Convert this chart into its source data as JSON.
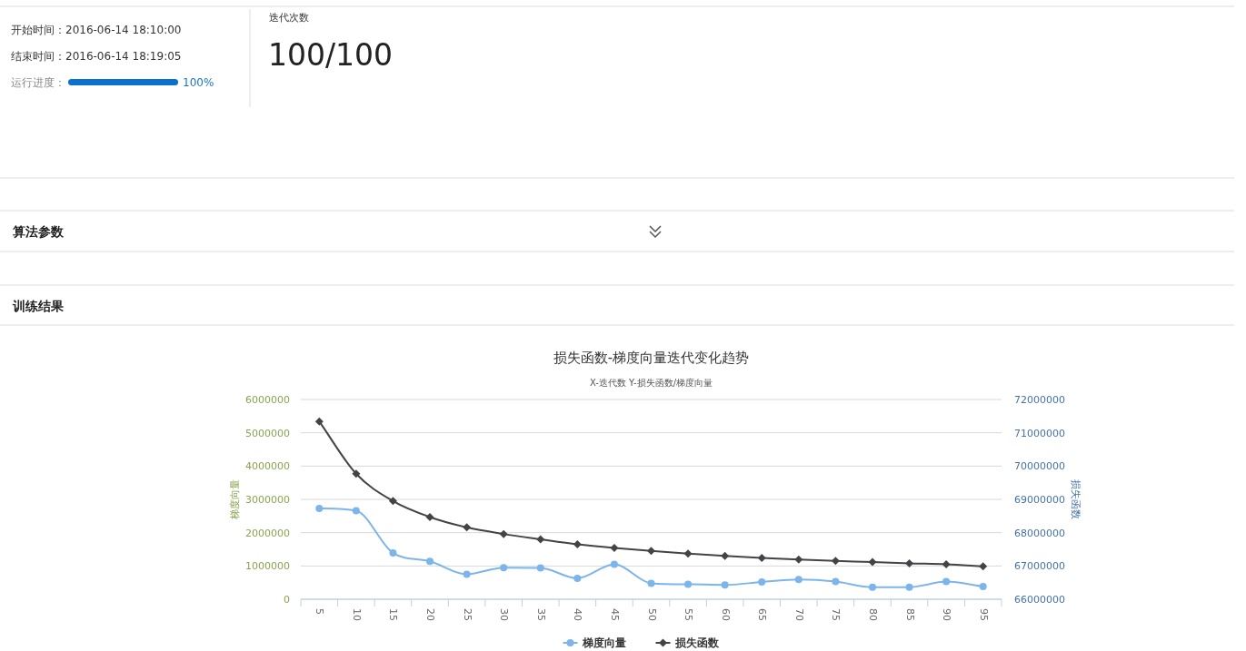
{
  "chart_data": [
    {
      "type": "other",
      "annotations": [
        "开始时间：2016-06-14 18:10:00",
        "结束时间：2016-06-14 18:19:05",
        "运行进度：",
        "100%",
        "迭代次数",
        "100/100",
        "算法参数",
        "训练结果"
      ]
    },
    {
      "type": "line",
      "title": "损失函数-梯度向量迭代变化趋势",
      "subtitle": "X-迭代数 Y-损失函数/梯度向量",
      "ylabel": "梯度向量",
      "y2label": "损失函数",
      "categories": [
        "5",
        "10",
        "15",
        "20",
        "25",
        "30",
        "35",
        "40",
        "45",
        "50",
        "55",
        "60",
        "65",
        "70",
        "75",
        "80",
        "85",
        "90",
        "95"
      ],
      "series": [
        {
          "name": "梯度向量",
          "color": "#7cb5ec",
          "marker": "circle",
          "values": [
            2730000,
            2660000,
            1390000,
            1140000,
            750000,
            950000,
            940000,
            630000,
            1050000,
            480000,
            450000,
            430000,
            520000,
            590000,
            530000,
            360000,
            360000,
            530000,
            380000
          ]
        },
        {
          "name": "损失函数",
          "color": "#434348",
          "marker": "diamond",
          "axis": "y2",
          "values": [
            71340000,
            69770000,
            68950000,
            68470000,
            68160000,
            67960000,
            67800000,
            67650000,
            67540000,
            67450000,
            67370000,
            67300000,
            67240000,
            67190000,
            67150000,
            67120000,
            67080000,
            67050000,
            66990000
          ]
        }
      ],
      "ylim": [
        0,
        6000000
      ],
      "yticks": [
        0,
        1000000,
        2000000,
        3000000,
        4000000,
        5000000,
        6000000
      ],
      "y2lim": [
        66000000,
        72000000
      ],
      "y2ticks": [
        66000000,
        67000000,
        68000000,
        69000000,
        70000000,
        71000000,
        72000000
      ],
      "grid": "y",
      "legend": "bottom"
    }
  ]
}
